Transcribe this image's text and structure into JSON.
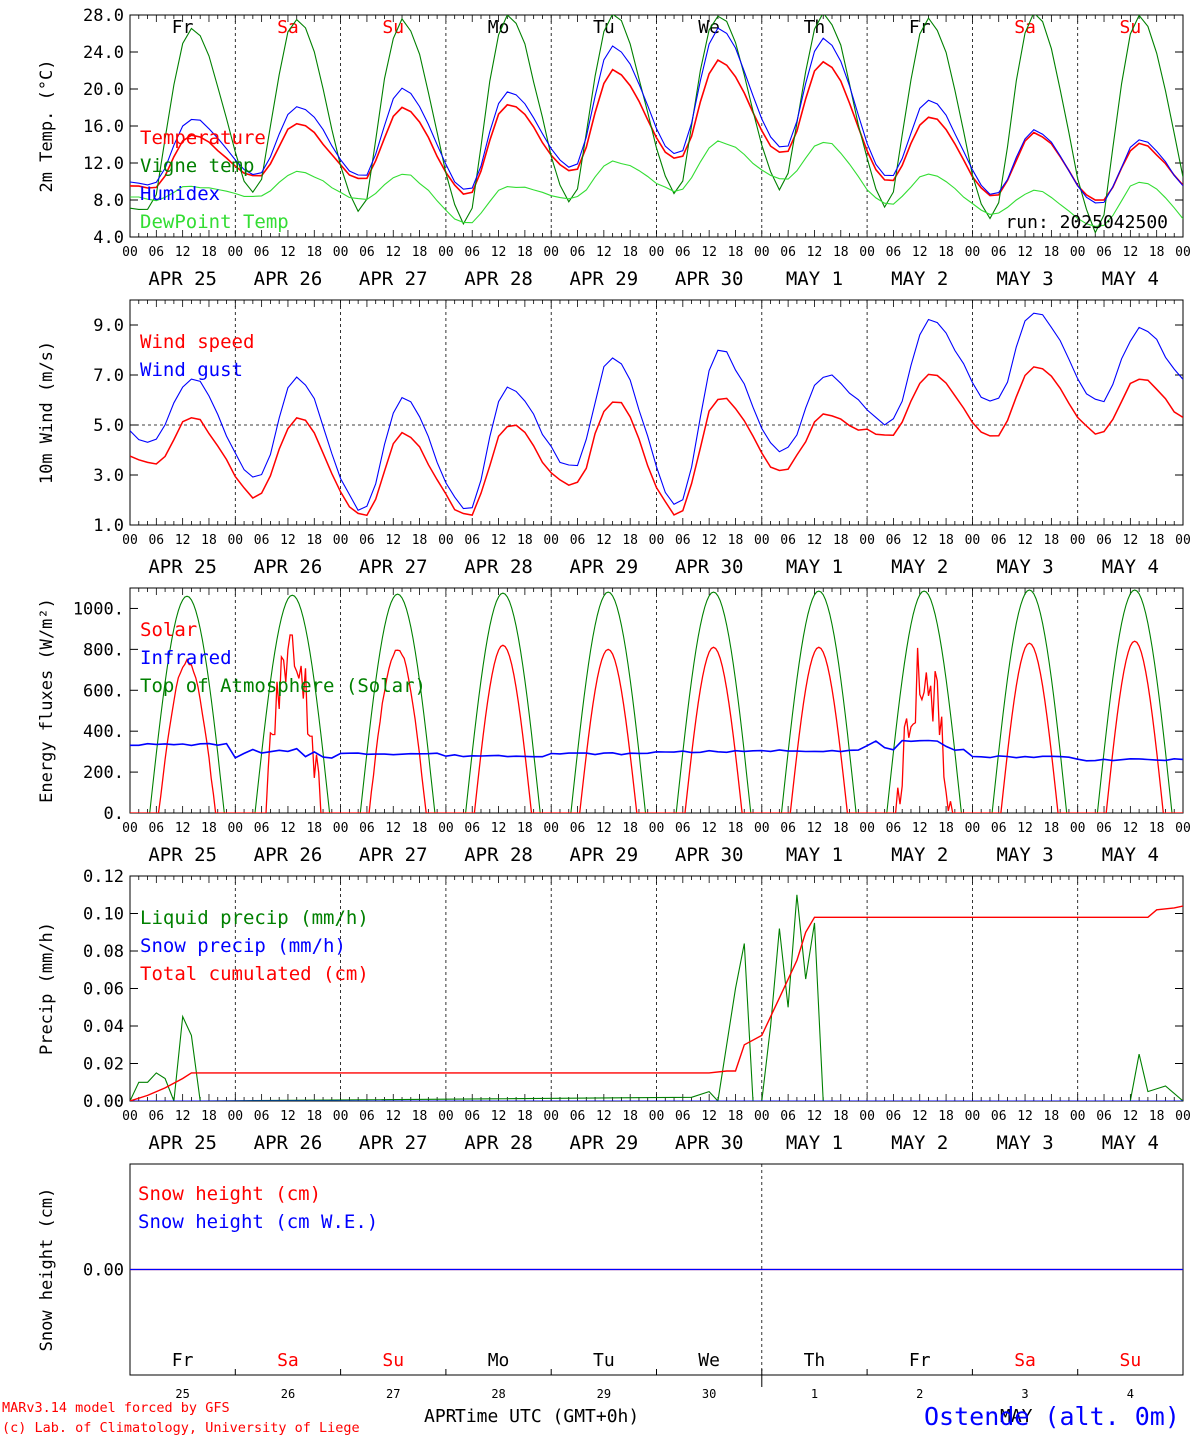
{
  "footer": {
    "credit1": "MARv3.14 model forced by GFS",
    "credit2": "(c) Lab. of Climatology, University of Liege",
    "xlabel": "Time UTC (GMT+0h)",
    "station": "Ostende (alt. 0m)",
    "month_left": "APR",
    "month_right": "MAY"
  },
  "colors": {
    "red": "#ff0000",
    "green": "#008000",
    "blue": "#0000ff",
    "lightgreen": "#33dd33",
    "weekend": "#ff0000"
  },
  "chart_data": {
    "time_axis": {
      "hours_per_day": [
        "00",
        "06",
        "12",
        "18"
      ],
      "final_tick": "00",
      "days": [
        "APR 25",
        "APR 26",
        "APR 27",
        "APR 28",
        "APR 29",
        "APR 30",
        "MAY  1",
        "MAY  2",
        "MAY  3",
        "MAY  4"
      ],
      "weekdays": [
        "Fr",
        "Sa",
        "Su",
        "Mo",
        "Tu",
        "We",
        "Th",
        "Fr",
        "Sa",
        "Su"
      ],
      "weekend": [
        false,
        true,
        true,
        false,
        false,
        false,
        false,
        false,
        true,
        true
      ],
      "daynums": [
        "25",
        "26",
        "27",
        "28",
        "29",
        "30",
        "1",
        "2",
        "3",
        "4"
      ]
    },
    "panels": [
      {
        "id": "temp",
        "type": "line",
        "ylabel": "2m Temp. (°C)",
        "ylim": [
          4,
          28
        ],
        "yticks": [
          "4.0",
          "8.0",
          "12.0",
          "16.0",
          "20.0",
          "24.0",
          "28.0"
        ],
        "run_label": "run: 2025042500",
        "series": [
          {
            "name": "Temperature",
            "color": "#ff0000",
            "min": [
              9.2,
              10.5,
              10.2,
              8.6,
              11.0,
              12.3,
              13.0,
              10.0,
              8.4,
              7.8
            ],
            "max": [
              15.0,
              16.2,
              18.0,
              18.4,
              22.0,
              23.0,
              23.0,
              17.0,
              15.2,
              14.0
            ]
          },
          {
            "name": "Vigne temp",
            "color": "#008000",
            "min": [
              7.0,
              8.5,
              6.5,
              5.2,
              7.5,
              8.5,
              9.0,
              7.0,
              5.5,
              4.5
            ],
            "max": [
              26.5,
              27.5,
              27.5,
              28.0,
              28.0,
              28.0,
              28.0,
              27.5,
              28.0,
              28.0
            ]
          },
          {
            "name": "Humidex",
            "color": "#0000ff",
            "min": [
              9.6,
              10.8,
              10.5,
              9.0,
              11.5,
              12.8,
              13.5,
              10.4,
              8.6,
              7.6
            ],
            "max": [
              16.8,
              18.2,
              20.0,
              19.8,
              24.6,
              26.5,
              25.5,
              18.8,
              15.5,
              14.5
            ]
          },
          {
            "name": "DewPoint Temp",
            "color": "#33dd33",
            "min": [
              8.0,
              8.4,
              8.0,
              5.5,
              8.2,
              9.0,
              10.2,
              7.5,
              6.5,
              5.0
            ],
            "max": [
              9.5,
              11.0,
              10.8,
              9.5,
              12.2,
              14.3,
              14.3,
              10.8,
              9.0,
              10.0
            ]
          }
        ]
      },
      {
        "id": "wind",
        "type": "line",
        "ylabel": "10m Wind (m/s)",
        "ylim": [
          1,
          10
        ],
        "yticks": [
          "1.0",
          "3.0",
          "5.0",
          "7.0",
          "9.0"
        ],
        "ref_line": 5,
        "series": [
          {
            "name": "Wind speed",
            "color": "#ff0000",
            "min": [
              3.3,
              2.1,
              1.3,
              1.3,
              2.5,
              1.4,
              3.1,
              4.5,
              4.6,
              4.6
            ],
            "max": [
              5.3,
              5.3,
              4.6,
              5.0,
              6.0,
              6.1,
              5.4,
              7.0,
              7.4,
              6.8
            ]
          },
          {
            "name": "Wind gust",
            "color": "#0000ff",
            "min": [
              4.3,
              2.8,
              1.6,
              1.6,
              3.3,
              1.7,
              3.9,
              5.0,
              5.9,
              5.9
            ],
            "max": [
              6.8,
              6.9,
              6.0,
              6.4,
              7.8,
              8.0,
              7.0,
              9.2,
              9.5,
              8.8
            ]
          }
        ]
      },
      {
        "id": "energy",
        "type": "line",
        "ylabel": "Energy fluxes (W/m²)",
        "ylim": [
          0,
          1100
        ],
        "yticks": [
          "0.",
          "200.",
          "400.",
          "600.",
          "800.",
          "1000."
        ],
        "series": [
          {
            "name": "Solar",
            "color": "#ff0000",
            "peaks": [
              740,
              800,
              800,
              820,
              800,
              810,
              810,
              680,
              830,
              840
            ]
          },
          {
            "name": "Infrared",
            "color": "#0000ff",
            "levels": [
              335,
              290,
              290,
              280,
              290,
              300,
              305,
              330,
              275,
              260
            ]
          },
          {
            "name": "Top of Atmosphere (Solar)",
            "color": "#008000",
            "peaks": [
              1060,
              1065,
              1070,
              1075,
              1080,
              1080,
              1085,
              1085,
              1090,
              1090
            ]
          }
        ]
      },
      {
        "id": "precip",
        "type": "line",
        "ylabel": "Precip (mm/h)",
        "ylim": [
          0,
          0.12
        ],
        "yticks": [
          "0.00",
          "0.02",
          "0.04",
          "0.06",
          "0.08",
          "0.10",
          "0.12"
        ],
        "series": [
          {
            "name": "Liquid precip (mm/h)",
            "color": "#008000",
            "points": [
              [
                0,
                0.0
              ],
              [
                1,
                0.01
              ],
              [
                2,
                0.01
              ],
              [
                3,
                0.015
              ],
              [
                4,
                0.012
              ],
              [
                5,
                0.0
              ],
              [
                6,
                0.045
              ],
              [
                7,
                0.035
              ],
              [
                8,
                0.0
              ],
              [
                64,
                0.002
              ],
              [
                66,
                0.005
              ],
              [
                67,
                0.0
              ],
              [
                69,
                0.06
              ],
              [
                70,
                0.084
              ],
              [
                71,
                0.0
              ],
              [
                72,
                0.0
              ],
              [
                73,
                0.04
              ],
              [
                74,
                0.092
              ],
              [
                75,
                0.05
              ],
              [
                76,
                0.11
              ],
              [
                77,
                0.065
              ],
              [
                78,
                0.095
              ],
              [
                79,
                0.0
              ],
              [
                114,
                0.0
              ],
              [
                115,
                0.025
              ],
              [
                116,
                0.005
              ],
              [
                118,
                0.008
              ],
              [
                120,
                0.0
              ]
            ]
          },
          {
            "name": "Snow precip (mm/h)",
            "color": "#0000ff",
            "points": [
              [
                0,
                0
              ],
              [
                120,
                0
              ]
            ]
          },
          {
            "name": "Total cumulated (cm)",
            "color": "#ff0000",
            "points": [
              [
                0,
                0.0
              ],
              [
                2,
                0.003
              ],
              [
                4,
                0.007
              ],
              [
                6,
                0.012
              ],
              [
                7,
                0.015
              ],
              [
                66,
                0.015
              ],
              [
                68,
                0.016
              ],
              [
                69,
                0.016
              ],
              [
                70,
                0.03
              ],
              [
                72,
                0.035
              ],
              [
                74,
                0.055
              ],
              [
                76,
                0.075
              ],
              [
                77,
                0.09
              ],
              [
                78,
                0.098
              ],
              [
                116,
                0.098
              ],
              [
                117,
                0.102
              ],
              [
                119,
                0.103
              ],
              [
                120,
                0.104
              ]
            ]
          }
        ]
      },
      {
        "id": "snow",
        "type": "line",
        "ylabel": "Snow height (cm)",
        "ylim": [
          -1,
          1
        ],
        "yticks": [
          "0.00"
        ],
        "series": [
          {
            "name": "Snow height (cm)",
            "color": "#ff0000",
            "value": 0
          },
          {
            "name": "Snow height (cm W.E.)",
            "color": "#0000ff",
            "value": 0
          }
        ]
      }
    ]
  }
}
